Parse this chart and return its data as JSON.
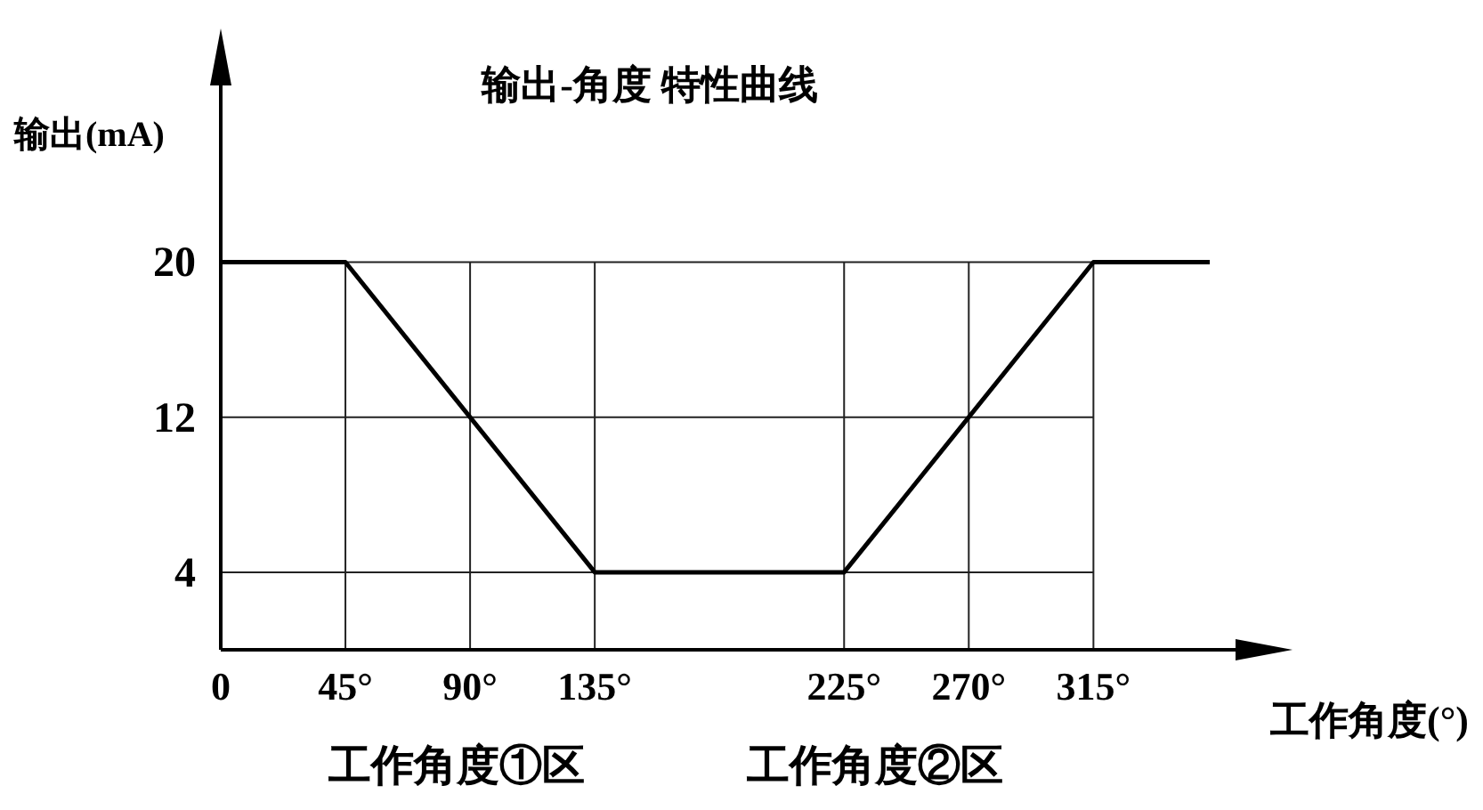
{
  "chart_data": {
    "type": "line",
    "title": "输出-角度  特性曲线",
    "ylabel": "输出(mA)",
    "xlabel": "工作角度(°)",
    "xlim": [
      0,
      383
    ],
    "ylim": [
      0,
      31.5
    ],
    "xticks": [
      {
        "value": 0,
        "label": "0"
      },
      {
        "value": 45,
        "label": "45°"
      },
      {
        "value": 90,
        "label": "90°"
      },
      {
        "value": 135,
        "label": "135°"
      },
      {
        "value": 225,
        "label": "225°"
      },
      {
        "value": 270,
        "label": "270°"
      },
      {
        "value": 315,
        "label": "315°"
      }
    ],
    "yticks": [
      4,
      12,
      20
    ],
    "grid": "y",
    "marker": "none",
    "ref_lines": [
      {
        "axis": "x",
        "value": 45
      },
      {
        "axis": "x",
        "value": 90
      },
      {
        "axis": "x",
        "value": 135
      },
      {
        "axis": "x",
        "value": 225
      },
      {
        "axis": "x",
        "value": 270
      },
      {
        "axis": "x",
        "value": 315
      }
    ],
    "line_style": "solid",
    "series": [
      {
        "color": "#000000",
        "x": [
          0,
          45,
          135,
          225,
          315,
          357
        ],
        "values": [
          20,
          20,
          4,
          4,
          20,
          20
        ]
      }
    ],
    "annotations": [
      "工作角度①区",
      "工作角度②区"
    ]
  }
}
